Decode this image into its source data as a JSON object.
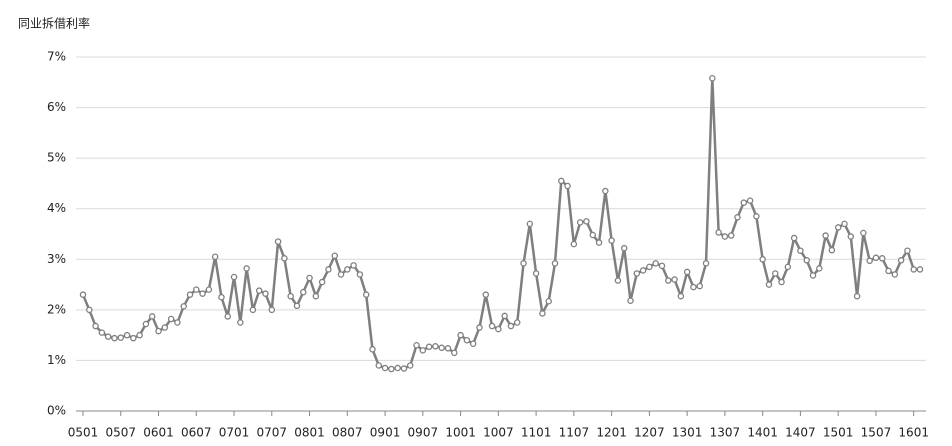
{
  "chart_data": {
    "type": "line",
    "title": "同业拆借利率",
    "categories": [
      "0501",
      null,
      null,
      null,
      null,
      null,
      "0507",
      null,
      null,
      null,
      null,
      null,
      "0601",
      null,
      null,
      null,
      null,
      null,
      "0607",
      null,
      null,
      null,
      null,
      null,
      "0701",
      null,
      null,
      null,
      null,
      null,
      "0707",
      null,
      null,
      null,
      null,
      null,
      "0801",
      null,
      null,
      null,
      null,
      null,
      "0807",
      null,
      null,
      null,
      null,
      null,
      "0901",
      null,
      null,
      null,
      null,
      null,
      "0907",
      null,
      null,
      null,
      null,
      null,
      "1001",
      null,
      null,
      null,
      null,
      null,
      "1007",
      null,
      null,
      null,
      null,
      null,
      "1101",
      null,
      null,
      null,
      null,
      null,
      "1107",
      null,
      null,
      null,
      null,
      null,
      "1201",
      null,
      null,
      null,
      null,
      null,
      "1207",
      null,
      null,
      null,
      null,
      null,
      "1301",
      null,
      null,
      null,
      null,
      null,
      "1307",
      null,
      null,
      null,
      null,
      null,
      "1401",
      null,
      null,
      null,
      null,
      null,
      "1407",
      null,
      null,
      null,
      null,
      null,
      "1501",
      null,
      null,
      null,
      null,
      null,
      "1507",
      null,
      null,
      null,
      null,
      null,
      "1601",
      null
    ],
    "values": [
      2.3,
      2.0,
      1.68,
      1.55,
      1.47,
      1.44,
      1.45,
      1.5,
      1.44,
      1.5,
      1.72,
      1.87,
      1.58,
      1.65,
      1.82,
      1.75,
      2.07,
      2.3,
      2.4,
      2.32,
      2.4,
      3.05,
      2.25,
      1.87,
      2.65,
      1.75,
      2.82,
      2.0,
      2.38,
      2.32,
      2.0,
      3.35,
      3.02,
      2.27,
      2.08,
      2.35,
      2.63,
      2.27,
      2.55,
      2.8,
      3.07,
      2.7,
      2.8,
      2.88,
      2.7,
      2.3,
      1.22,
      0.9,
      0.85,
      0.83,
      0.85,
      0.84,
      0.9,
      1.3,
      1.2,
      1.27,
      1.28,
      1.25,
      1.24,
      1.15,
      1.5,
      1.4,
      1.33,
      1.65,
      2.3,
      1.68,
      1.62,
      1.88,
      1.68,
      1.75,
      2.92,
      3.7,
      2.72,
      1.93,
      2.17,
      2.92,
      4.55,
      4.45,
      3.3,
      3.73,
      3.75,
      3.48,
      3.33,
      4.35,
      3.37,
      2.58,
      3.22,
      2.18,
      2.72,
      2.78,
      2.85,
      2.92,
      2.87,
      2.58,
      2.6,
      2.27,
      2.75,
      2.45,
      2.47,
      2.92,
      6.58,
      3.53,
      3.45,
      3.47,
      3.83,
      4.12,
      4.16,
      3.85,
      3.0,
      2.5,
      2.72,
      2.55,
      2.85,
      3.42,
      3.17,
      2.98,
      2.68,
      2.82,
      3.47,
      3.18,
      3.63,
      3.7,
      3.45,
      2.27,
      3.52,
      2.97,
      3.03,
      3.02,
      2.77,
      2.7,
      2.98,
      3.17,
      2.8,
      2.8
    ],
    "color": "#7f7f7f",
    "ylim": [
      0,
      7
    ],
    "yticks": [
      {
        "value": 0,
        "label": "0%"
      },
      {
        "value": 1,
        "label": "1%"
      },
      {
        "value": 2,
        "label": "2%"
      },
      {
        "value": 3,
        "label": "3%"
      },
      {
        "value": 4,
        "label": "4%"
      },
      {
        "value": 5,
        "label": "5%"
      },
      {
        "value": 6,
        "label": "6%"
      },
      {
        "value": 7,
        "label": "7%"
      }
    ],
    "grid": true
  }
}
